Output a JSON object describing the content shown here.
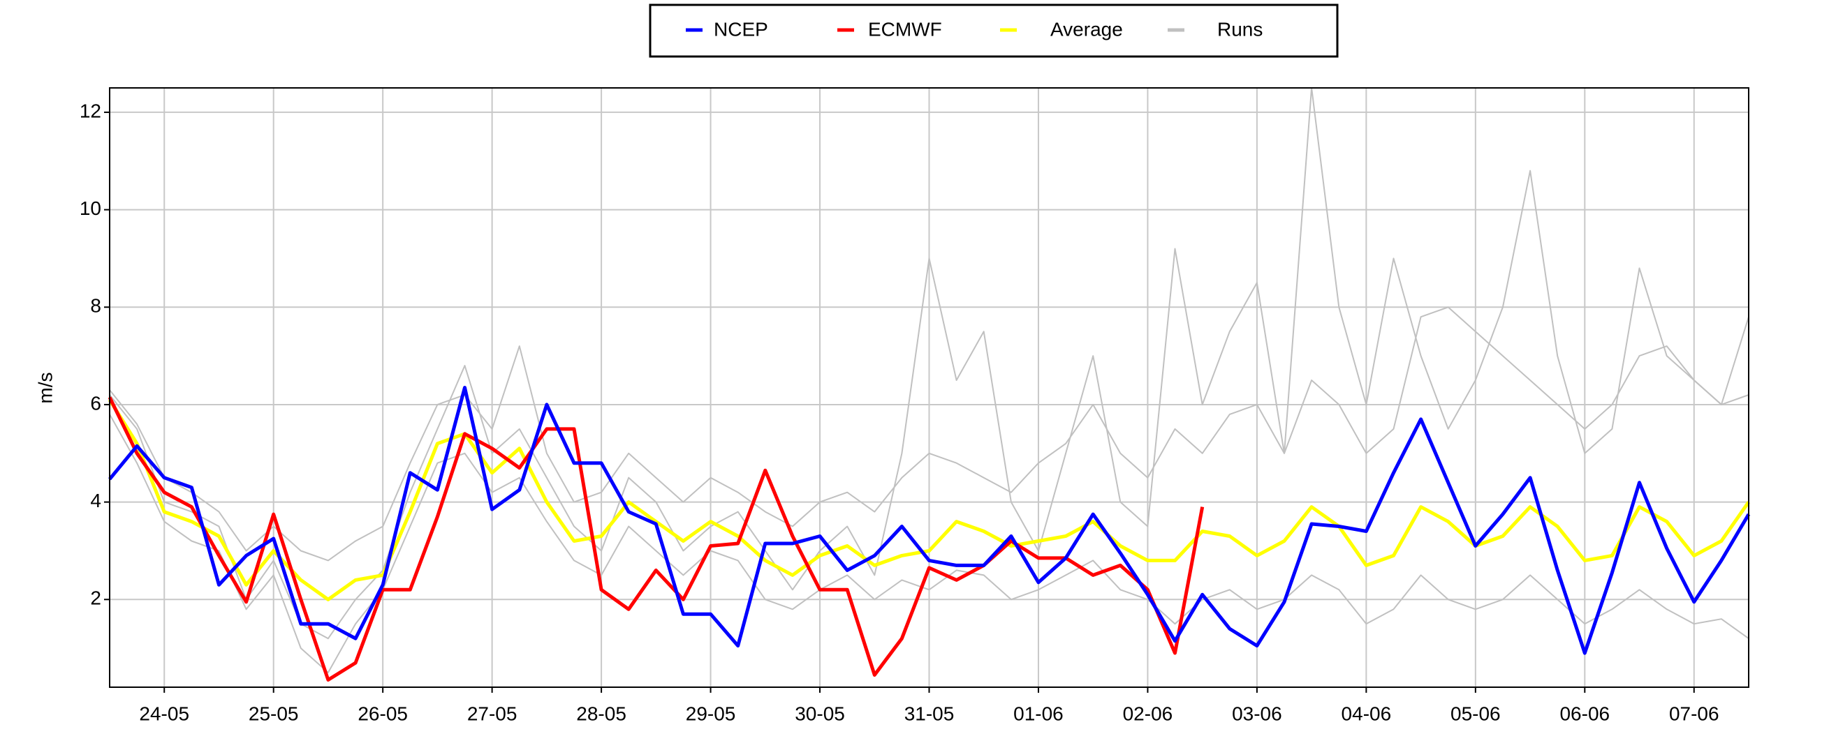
{
  "chart_data": {
    "type": "line",
    "y_label": "m/s",
    "x": [
      -0.5,
      -0.25,
      0,
      0.25,
      0.5,
      0.75,
      1,
      1.25,
      1.5,
      1.75,
      2,
      2.25,
      2.5,
      2.75,
      3,
      3.25,
      3.5,
      3.75,
      4,
      4.25,
      4.5,
      4.75,
      5,
      5.25,
      5.5,
      5.75,
      6,
      6.25,
      6.5,
      6.75,
      7,
      7.25,
      7.5,
      7.75,
      8,
      8.25,
      8.5,
      8.75,
      9,
      9.25,
      9.5,
      9.75,
      10,
      10.25,
      10.5,
      10.75,
      11,
      11.25,
      11.5,
      11.75,
      12,
      12.25,
      12.5,
      12.75,
      13,
      13.25,
      13.5,
      13.75,
      14,
      14.25,
      14.5
    ],
    "xlim": [
      -0.5,
      14.5
    ],
    "xticks": [
      {
        "value": 0,
        "label": "24-05"
      },
      {
        "value": 1,
        "label": "25-05"
      },
      {
        "value": 2,
        "label": "26-05"
      },
      {
        "value": 3,
        "label": "27-05"
      },
      {
        "value": 4,
        "label": "28-05"
      },
      {
        "value": 5,
        "label": "29-05"
      },
      {
        "value": 6,
        "label": "30-05"
      },
      {
        "value": 7,
        "label": "31-05"
      },
      {
        "value": 8,
        "label": "01-06"
      },
      {
        "value": 9,
        "label": "02-06"
      },
      {
        "value": 10,
        "label": "03-06"
      },
      {
        "value": 11,
        "label": "04-06"
      },
      {
        "value": 12,
        "label": "05-06"
      },
      {
        "value": 13,
        "label": "06-06"
      },
      {
        "value": 14,
        "label": "07-06"
      }
    ],
    "ylim": [
      0.2,
      12.5
    ],
    "yticks": [
      2,
      4,
      6,
      8,
      10,
      12
    ],
    "grid": true,
    "legend": "top",
    "series": [
      {
        "name": "NCEP",
        "color": "#0000ff",
        "values": [
          4.47,
          5.15,
          4.5,
          4.3,
          2.3,
          2.9,
          3.25,
          1.5,
          1.5,
          1.2,
          2.3,
          4.6,
          4.25,
          6.35,
          3.85,
          4.25,
          6.0,
          4.8,
          4.8,
          3.8,
          3.55,
          1.7,
          1.7,
          1.05,
          3.15,
          3.15,
          3.3,
          2.6,
          2.9,
          3.5,
          2.8,
          2.7,
          2.7,
          3.3,
          2.35,
          2.85,
          3.75,
          2.95,
          2.1,
          1.15,
          2.1,
          1.4,
          1.05,
          1.95,
          3.55,
          3.5,
          3.4,
          4.6,
          5.7,
          4.4,
          3.1,
          3.75,
          4.5,
          2.6,
          0.9,
          2.55,
          4.4,
          3.05,
          1.95,
          2.8,
          3.75
        ]
      },
      {
        "name": "ECMWF",
        "color": "#ff0000",
        "values": [
          6.15,
          5.0,
          4.2,
          3.9,
          2.9,
          1.95,
          3.75,
          2.0,
          0.35,
          0.7,
          2.2,
          2.2,
          3.7,
          5.4,
          5.1,
          4.7,
          5.5,
          5.5,
          2.2,
          1.8,
          2.6,
          2.0,
          3.1,
          3.15,
          4.65,
          3.3,
          2.2,
          2.2,
          0.45,
          1.2,
          2.65,
          2.4,
          2.7,
          3.2,
          2.85,
          2.85,
          2.5,
          2.7,
          2.2,
          0.9,
          3.9,
          null,
          null,
          null,
          null,
          null,
          null,
          null,
          null,
          null,
          null,
          null,
          null,
          null,
          null,
          null,
          null,
          null,
          null,
          null,
          null
        ]
      },
      {
        "name": "Average",
        "color": "#ffff00",
        "values": [
          6.1,
          5.2,
          3.8,
          3.6,
          3.3,
          2.3,
          3.0,
          2.4,
          2.0,
          2.4,
          2.5,
          3.8,
          5.2,
          5.4,
          4.6,
          5.1,
          4.0,
          3.2,
          3.3,
          4.0,
          3.6,
          3.2,
          3.6,
          3.3,
          2.8,
          2.5,
          2.9,
          3.1,
          2.7,
          2.9,
          3.0,
          3.6,
          3.4,
          3.1,
          3.2,
          3.3,
          3.6,
          3.1,
          2.8,
          2.8,
          3.4,
          3.3,
          2.9,
          3.2,
          3.9,
          3.5,
          2.7,
          2.9,
          3.9,
          3.6,
          3.1,
          3.3,
          3.9,
          3.5,
          2.8,
          2.9,
          3.9,
          3.6,
          2.9,
          3.2,
          4.0
        ]
      },
      {
        "name": "Runs",
        "color": "#c0c0c0",
        "values": [
          [
            6.2,
            5.5,
            4.0,
            3.8,
            3.5,
            2.0,
            2.8,
            1.5,
            1.2,
            2.0,
            2.6,
            4.2,
            5.5,
            6.8,
            5.0,
            5.5,
            4.5,
            3.5,
            3.0,
            4.5,
            4.0,
            3.0,
            3.5,
            3.8,
            3.0,
            2.2,
            3.0,
            3.5,
            2.5,
            5.0,
            9.0,
            6.5,
            7.5,
            4.0,
            3.0,
            5.0,
            7.0,
            4.0,
            3.5,
            9.2,
            6.0,
            7.5,
            8.5,
            5.0,
            12.5,
            8.0,
            6.0,
            9.0,
            7.0,
            5.5,
            6.5,
            8.0,
            10.8,
            7.0,
            5.0,
            5.5,
            8.8,
            7.0,
            6.5,
            6.0,
            6.2
          ],
          [
            5.8,
            4.8,
            3.6,
            3.2,
            3.0,
            1.8,
            2.5,
            1.0,
            0.5,
            1.5,
            2.2,
            3.5,
            4.8,
            5.0,
            4.2,
            4.5,
            3.6,
            2.8,
            2.5,
            3.5,
            3.0,
            2.5,
            3.0,
            2.8,
            2.0,
            1.8,
            2.2,
            2.5,
            2.0,
            2.4,
            2.2,
            2.6,
            2.5,
            2.0,
            2.2,
            2.5,
            2.8,
            2.2,
            2.0,
            1.5,
            2.0,
            2.2,
            1.8,
            2.0,
            2.5,
            2.2,
            1.5,
            1.8,
            2.5,
            2.0,
            1.8,
            2.0,
            2.5,
            2.0,
            1.5,
            1.8,
            2.2,
            1.8,
            1.5,
            1.6,
            1.2
          ],
          [
            6.3,
            5.6,
            4.5,
            4.2,
            3.8,
            3.0,
            3.5,
            3.0,
            2.8,
            3.2,
            3.5,
            4.8,
            6.0,
            6.2,
            5.5,
            7.2,
            5.0,
            4.0,
            4.2,
            5.0,
            4.5,
            4.0,
            4.5,
            4.2,
            3.8,
            3.5,
            4.0,
            4.2,
            3.8,
            4.5,
            5.0,
            4.8,
            4.5,
            4.2,
            4.8,
            5.2,
            6.0,
            5.0,
            4.5,
            5.5,
            5.0,
            5.8,
            6.0,
            5.0,
            6.5,
            6.0,
            5.0,
            5.5,
            7.8,
            8.0,
            7.5,
            7.0,
            6.5,
            6.0,
            5.5,
            6.0,
            7.0,
            7.2,
            6.5,
            6.0,
            7.8
          ]
        ]
      }
    ]
  }
}
